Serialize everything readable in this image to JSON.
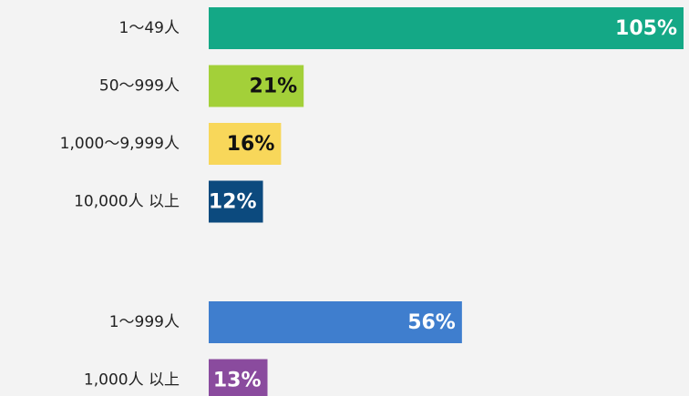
{
  "chart_data": [
    {
      "type": "bar",
      "categories": [
        "1～49人",
        "50～999人",
        "1,000～9,999人",
        "10,000人 以上"
      ],
      "values": [
        105,
        21,
        16,
        12
      ],
      "value_labels": [
        "105%",
        "21%",
        "16%",
        "12%"
      ],
      "colors": [
        "#14a886",
        "#a3d039",
        "#f8d75a",
        "#0c4a7e"
      ]
    },
    {
      "type": "bar",
      "categories": [
        "1～999人",
        "1,000人 以上"
      ],
      "values": [
        56,
        13
      ],
      "value_labels": [
        "56%",
        "13%"
      ],
      "colors": [
        "#3f7ece",
        "#8a4b9e"
      ]
    }
  ]
}
